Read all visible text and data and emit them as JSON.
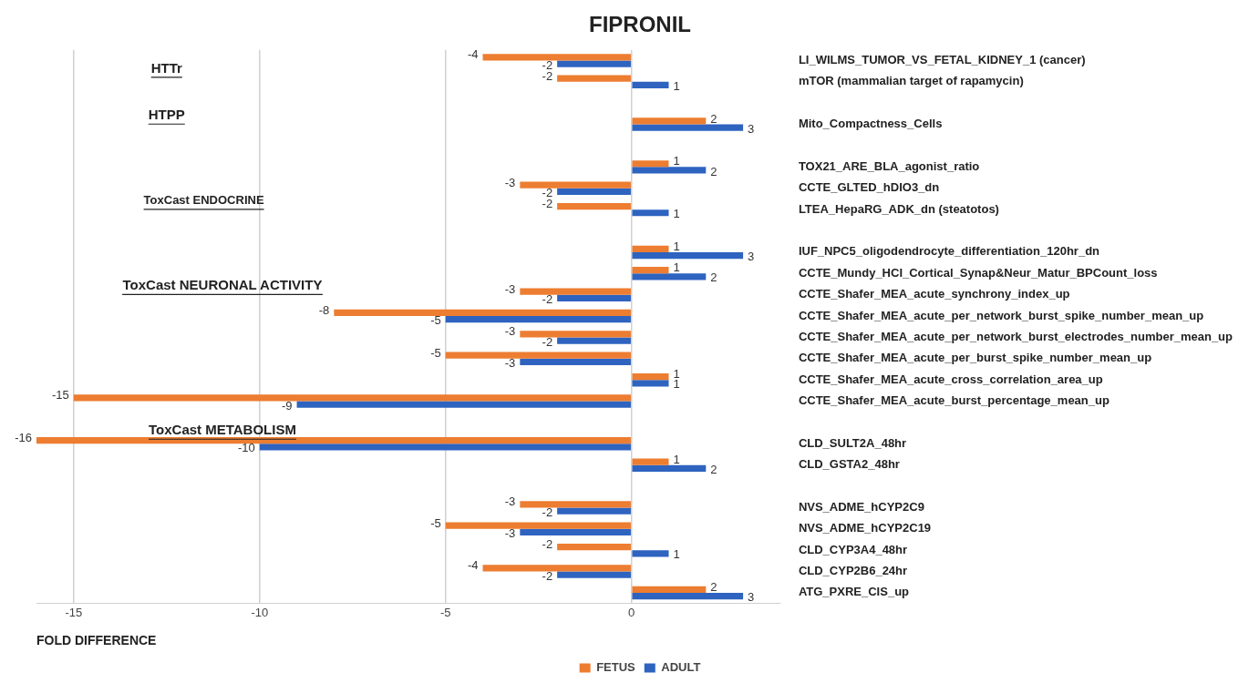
{
  "chart_data": {
    "type": "bar",
    "orientation": "horizontal",
    "title": "FIPRONIL",
    "xlabel": "FOLD DIFFERENCE",
    "categories": [
      "LI_WILMS_TUMOR_VS_FETAL_KIDNEY_1 (cancer)",
      "mTOR (mammalian target of rapamycin)",
      null,
      "Mito_Compactness_Cells",
      null,
      "TOX21_ARE_BLA_agonist_ratio",
      "CCTE_GLTED_hDIO3_dn",
      "LTEA_HepaRG_ADK_dn (steatotos)",
      null,
      "IUF_NPC5_oligodendrocyte_differentiation_120hr_dn",
      "CCTE_Mundy_HCI_Cortical_Synap&Neur_Matur_BPCount_loss",
      "CCTE_Shafer_MEA_acute_synchrony_index_up",
      "CCTE_Shafer_MEA_acute_per_network_burst_spike_number_mean_up",
      "CCTE_Shafer_MEA_acute_per_network_burst_electrodes_number_mean_up",
      "CCTE_Shafer_MEA_acute_per_burst_spike_number_mean_up",
      "CCTE_Shafer_MEA_acute_cross_correlation_area_up",
      "CCTE_Shafer_MEA_acute_burst_percentage_mean_up",
      null,
      "CLD_SULT2A_48hr",
      "CLD_GSTA2_48hr",
      null,
      "NVS_ADME_hCYP2C9",
      "NVS_ADME_hCYP2C19",
      "CLD_CYP3A4_48hr",
      "CLD_CYP2B6_24hr",
      "ATG_PXRE_CIS_up"
    ],
    "series": [
      {
        "name": "FETUS",
        "color": "#ed7d31",
        "values": [
          -4,
          -2,
          null,
          2,
          null,
          1,
          -3,
          -2,
          null,
          1,
          1,
          -3,
          -8,
          -3,
          -5,
          1,
          -15,
          null,
          -16,
          1,
          null,
          -3,
          -5,
          -2,
          -4,
          2
        ]
      },
      {
        "name": "ADULT",
        "color": "#2e63c0",
        "values": [
          -2,
          1,
          null,
          3,
          null,
          2,
          -2,
          1,
          null,
          3,
          2,
          -2,
          -5,
          -2,
          -3,
          1,
          -9,
          null,
          -10,
          2,
          null,
          -2,
          -3,
          1,
          -2,
          3
        ]
      }
    ],
    "xlim": [
      -16,
      4
    ],
    "xticks": [
      -15,
      -10,
      -5,
      0
    ],
    "grid": "x",
    "legend": "bottom",
    "data_labels": true,
    "annotations": [
      "HTTr",
      "HTPP",
      "ToxCast ENDOCRINE",
      "ToxCast NEURONAL ACTIVITY",
      "ToxCast METABOLISM"
    ]
  }
}
